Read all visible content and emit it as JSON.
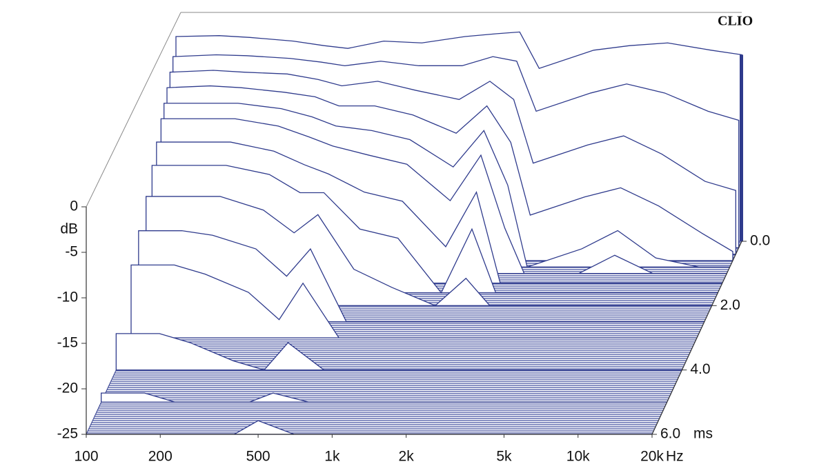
{
  "chart_data": {
    "type": "waterfall",
    "brand": "CLIO",
    "y_label": "dB",
    "x_unit": "Hz",
    "time_unit": "ms",
    "color": "#2e3a8c",
    "xlim": [
      100,
      20000
    ],
    "ylim": [
      -25,
      0
    ],
    "tlim": [
      0,
      6
    ],
    "log_x": true,
    "xticks": [
      100,
      200,
      500,
      {
        "value": 1000,
        "label": "1k"
      },
      {
        "value": 2000,
        "label": "2k"
      },
      {
        "value": 5000,
        "label": "5k"
      },
      {
        "value": 10000,
        "label": "10k"
      },
      {
        "value": 20000,
        "label": "20k"
      }
    ],
    "yticks": [
      0,
      -5,
      -10,
      -15,
      -20,
      -25
    ],
    "tticks": [
      {
        "value": 0,
        "label": "0.0"
      },
      {
        "value": 2,
        "label": "2.0"
      },
      {
        "value": 4,
        "label": "4.0"
      },
      {
        "value": 6,
        "label": "6.0"
      }
    ],
    "frequencies": [
      100,
      150,
      200,
      300,
      400,
      500,
      700,
      1000,
      1500,
      2000,
      2500,
      3000,
      5000,
      7000,
      10000,
      15000,
      20000
    ],
    "slices": [
      {
        "time": 0,
        "values": [
          -2.5,
          -2.4,
          -2.6,
          -3,
          -3.5,
          -3.8,
          -3,
          -3.2,
          -2.5,
          -2.2,
          -2,
          -6,
          -4,
          -3.5,
          -3.2,
          -4,
          -4.5
        ]
      },
      {
        "time": 0.2,
        "values": [
          -4,
          -3.8,
          -3.9,
          -4.2,
          -4.6,
          -5,
          -4.5,
          -5,
          -5,
          -4,
          -4.5,
          -10,
          -8,
          -7,
          -8,
          -10,
          -11
        ]
      },
      {
        "time": 0.4,
        "values": [
          -5,
          -4.8,
          -5,
          -5.2,
          -5.8,
          -6.5,
          -6,
          -7,
          -8,
          -6,
          -8,
          -15,
          -13,
          -12,
          -14,
          -17,
          -18
        ]
      },
      {
        "time": 0.6,
        "values": [
          -6,
          -5.8,
          -6,
          -6.5,
          -7,
          -8,
          -8,
          -9,
          -11,
          -8,
          -12,
          -20,
          -18,
          -17,
          -19,
          -22,
          -24
        ]
      },
      {
        "time": 0.8,
        "values": [
          -7,
          -7,
          -7,
          -7.6,
          -8.5,
          -9.5,
          -10,
          -11,
          -14,
          -10,
          -16,
          -25,
          -23,
          -21,
          -24,
          -25,
          -25
        ]
      },
      {
        "time": 1.0,
        "values": [
          -8,
          -8,
          -8,
          -8.8,
          -10,
          -11,
          -12,
          -13,
          -17,
          -12,
          -20,
          -25,
          -25,
          -23,
          -25,
          -25,
          -25
        ]
      },
      {
        "time": 1.3,
        "values": [
          -9.5,
          -9.5,
          -9.5,
          -10.5,
          -12,
          -13,
          -15,
          -16,
          -21,
          -15,
          -25,
          -25,
          -25,
          -25,
          -25,
          -25,
          -25
        ]
      },
      {
        "time": 1.6,
        "values": [
          -11,
          -11,
          -11,
          -12,
          -14,
          -14,
          -18,
          -19,
          -25,
          -18,
          -25,
          -25,
          -25,
          -25,
          -25,
          -25,
          -25
        ]
      },
      {
        "time": 2.0,
        "values": [
          -13,
          -13,
          -13,
          -14.5,
          -17,
          -15,
          -21,
          -23,
          -25,
          -22,
          -25,
          -25,
          -25,
          -25,
          -25,
          -25,
          -25
        ]
      },
      {
        "time": 2.5,
        "values": [
          -15,
          -15,
          -15.5,
          -17,
          -20,
          -17,
          -25,
          -25,
          -25,
          -25,
          -25,
          -25,
          -25,
          -25,
          -25,
          -25,
          -25
        ]
      },
      {
        "time": 3.0,
        "values": [
          -17,
          -17,
          -18,
          -20,
          -23,
          -19,
          -25,
          -25,
          -25,
          -25,
          -25,
          -25,
          -25,
          -25,
          -25,
          -25,
          -25
        ]
      },
      {
        "time": 4.0,
        "values": [
          -21,
          -21,
          -22,
          -24,
          -25,
          -22,
          -25,
          -25,
          -25,
          -25,
          -25,
          -25,
          -25,
          -25,
          -25,
          -25,
          -25
        ]
      },
      {
        "time": 5.0,
        "values": [
          -24,
          -24,
          -25,
          -25,
          -25,
          -24,
          -25,
          -25,
          -25,
          -25,
          -25,
          -25,
          -25,
          -25,
          -25,
          -25,
          -25
        ]
      },
      {
        "time": 6.0,
        "values": [
          -25,
          -25,
          -25,
          -25,
          -25,
          -23.5,
          -25,
          -25,
          -25,
          -25,
          -25,
          -25,
          -25,
          -25,
          -25,
          -25,
          -25
        ]
      }
    ]
  }
}
